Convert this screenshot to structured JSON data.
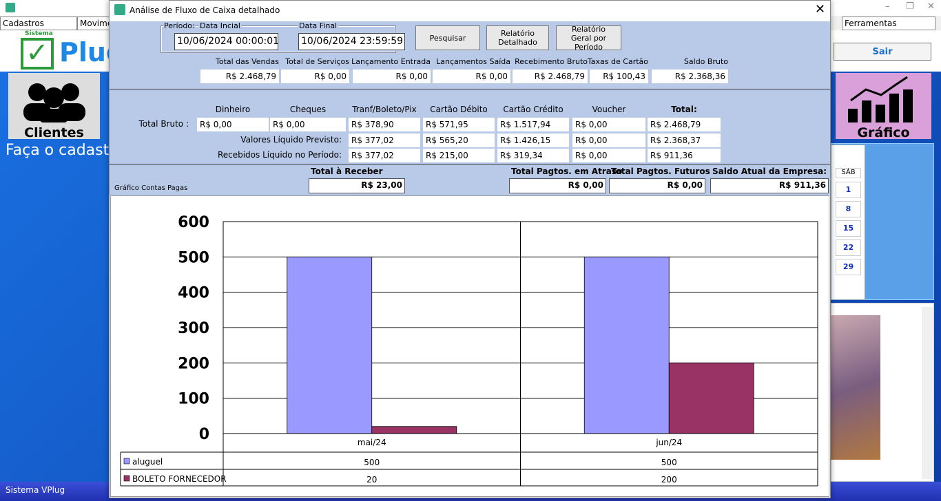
{
  "app": {
    "menus": [
      "Cadastros",
      "Movime",
      "Ferramentas"
    ],
    "logo": {
      "small": "Sistema",
      "brand": "Plug"
    },
    "exit_button": "Sair",
    "tiles": [
      "Clientes",
      "Gráfico"
    ],
    "banner": "Faça o cadast",
    "calendar": {
      "header": "SÁB",
      "days": [
        1,
        8,
        15,
        22,
        29
      ]
    },
    "status": "Sistema VPlug"
  },
  "dialog": {
    "title": "Análise de Fluxo de Caixa detalhado",
    "period": {
      "label": "Período:",
      "start_label": "Data Incial",
      "start": "10/06/2024 00:00:01",
      "end_label": "Data Final",
      "end": "10/06/2024 23:59:59"
    },
    "buttons": [
      "Pesquisar",
      "Relatório Detalhado",
      "Relatório Geral por Período"
    ],
    "summary": [
      {
        "label": "Total das Vendas",
        "value": "R$ 2.468,79"
      },
      {
        "label": "Total de Serviços",
        "value": "R$ 0,00"
      },
      {
        "label": "Lançamento Entrada",
        "value": "R$ 0,00"
      },
      {
        "label": "Lançamentos Saída",
        "value": "R$ 0,00"
      },
      {
        "label": "Recebimento Bruto",
        "value": "R$ 2.468,79"
      },
      {
        "label": "Taxas de Cartão",
        "value": "R$ 100,43"
      },
      {
        "label": "Saldo Bruto",
        "value": "R$ 2.368,36"
      }
    ],
    "grid": {
      "columns": [
        "Dinheiro",
        "Cheques",
        "Tranf/Boleto/Pix",
        "Cartão Débito",
        "Cartão Crédito",
        "Voucher",
        "Total:"
      ],
      "rows": [
        {
          "label": "Total Bruto :",
          "cells": [
            "R$ 0,00",
            "R$ 0,00",
            "R$ 378,90",
            "R$ 571,95",
            "R$ 1.517,94",
            "R$ 0,00",
            "R$ 2.468,79"
          ]
        },
        {
          "label": "Valores Líquido Previsto:",
          "cells": [
            "R$ 377,02",
            "R$ 565,20",
            "R$ 1.426,15",
            "R$ 0,00",
            "R$ 2.368,37"
          ]
        },
        {
          "label": "Recebidos Líquido no Período:",
          "cells": [
            "R$ 377,02",
            "R$ 215,00",
            "R$ 319,34",
            "R$ 0,00",
            "R$ 911,36"
          ]
        }
      ]
    },
    "totals": [
      {
        "label": "Total à Receber",
        "value": "R$ 23,00"
      },
      {
        "label": "Total Pagtos. em Atraso",
        "value": "R$ 0,00"
      },
      {
        "label": "Total Pagtos. Futuros",
        "value": "R$ 0,00"
      },
      {
        "label": "Saldo Atual da Empresa:",
        "value": "R$ 911,36"
      }
    ],
    "chart_caption": "Gráfico Contas Pagas"
  },
  "chart_data": {
    "type": "bar",
    "categories": [
      "mai/24",
      "jun/24"
    ],
    "series": [
      {
        "name": "aluguel",
        "color": "#9999ff",
        "values": [
          500,
          500
        ]
      },
      {
        "name": "BOLETO FORNECEDOR",
        "color": "#993366",
        "values": [
          20,
          200
        ]
      }
    ],
    "ylim": [
      0,
      600
    ],
    "yticks": [
      0,
      100,
      200,
      300,
      400,
      500,
      600
    ],
    "grid": true
  }
}
